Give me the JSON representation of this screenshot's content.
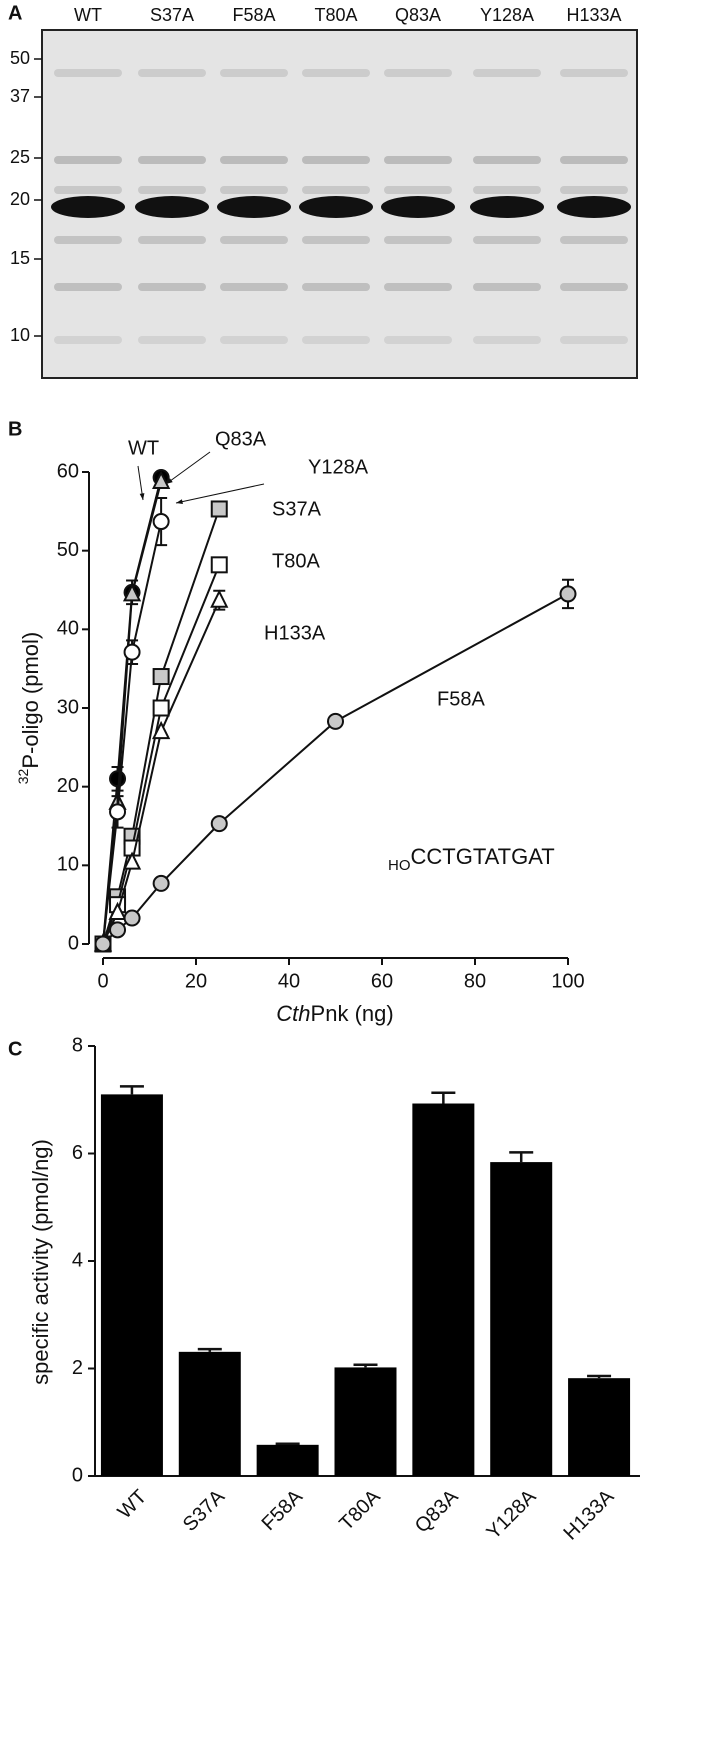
{
  "gel": {
    "panel_label": "A",
    "lanes": [
      "WT",
      "S37A",
      "F58A",
      "T80A",
      "Q83A",
      "Y128A",
      "H133A"
    ],
    "markers": [
      "50",
      "37",
      "25",
      "20",
      "15",
      "10"
    ]
  },
  "chart_data": [
    {
      "type": "line",
      "panel_label": "B",
      "x_label": [
        "Cth",
        "Pnk (ng)"
      ],
      "y_label": [
        "32",
        "P-oligo (pmol)"
      ],
      "annotation": [
        "HO",
        "CCTGTATGAT"
      ],
      "xlim": [
        0,
        100
      ],
      "xticks": [
        0,
        20,
        40,
        60,
        80,
        100
      ],
      "ylim": [
        0,
        60
      ],
      "yticks": [
        0,
        10,
        20,
        30,
        40,
        50,
        60
      ],
      "series": [
        {
          "name": "WT",
          "marker": "circle",
          "color": "#000000",
          "x": [
            0,
            3.125,
            6.25,
            12.5
          ],
          "values": [
            0,
            21,
            44.7,
            59.3
          ],
          "errors": [
            null,
            1.5,
            1.5,
            null
          ]
        },
        {
          "name": "Q83A",
          "marker": "triangle",
          "color": "#c8c8c8",
          "x": [
            0,
            3.125,
            6.25,
            12.5
          ],
          "values": [
            0,
            18,
            44.5,
            58.8
          ],
          "errors": [
            null,
            null,
            null,
            null
          ]
        },
        {
          "name": "Y128A",
          "marker": "circle",
          "color": "#ffffff",
          "x": [
            0,
            3.125,
            6.25,
            12.5
          ],
          "values": [
            0,
            16.8,
            37.1,
            53.7
          ],
          "errors": [
            null,
            2,
            1.5,
            3
          ]
        },
        {
          "name": "S37A",
          "marker": "square",
          "color": "#c8c8c8",
          "x": [
            0,
            3.125,
            6.25,
            12.5,
            25
          ],
          "values": [
            0,
            6,
            13.7,
            34,
            55.3
          ],
          "errors": [
            null,
            null,
            null,
            null,
            null
          ]
        },
        {
          "name": "T80A",
          "marker": "square",
          "color": "#ffffff",
          "x": [
            0,
            3.125,
            6.25,
            12.5,
            25
          ],
          "values": [
            0,
            5,
            12.2,
            30,
            48.2
          ],
          "errors": [
            null,
            null,
            null,
            null,
            null
          ]
        },
        {
          "name": "H133A",
          "marker": "triangle",
          "color": "#ffffff",
          "x": [
            0,
            3.125,
            6.25,
            12.5,
            25
          ],
          "values": [
            0,
            4,
            10.4,
            27,
            43.7
          ],
          "errors": [
            null,
            null,
            null,
            null,
            1.2
          ]
        },
        {
          "name": "F58A",
          "marker": "circle",
          "color": "#c8c8c8",
          "x": [
            0,
            3.125,
            6.25,
            12.5,
            25,
            50,
            100
          ],
          "values": [
            0,
            1.8,
            3.3,
            7.7,
            15.3,
            28.3,
            44.5
          ],
          "errors": [
            null,
            null,
            null,
            null,
            null,
            null,
            1.8
          ]
        }
      ]
    },
    {
      "type": "bar",
      "panel_label": "C",
      "y_label": "specific activity (pmol/ng)",
      "categories": [
        "WT",
        "S37A",
        "F58A",
        "T80A",
        "Q83A",
        "Y128A",
        "H133A"
      ],
      "values": [
        7.1,
        2.31,
        0.58,
        2.02,
        6.93,
        5.84,
        1.82
      ],
      "errors": [
        0.15,
        0.05,
        0.02,
        0.05,
        0.2,
        0.18,
        0.04
      ],
      "color": "#000000",
      "ylim": [
        0,
        8
      ],
      "yticks": [
        0,
        2,
        4,
        6,
        8
      ]
    }
  ]
}
